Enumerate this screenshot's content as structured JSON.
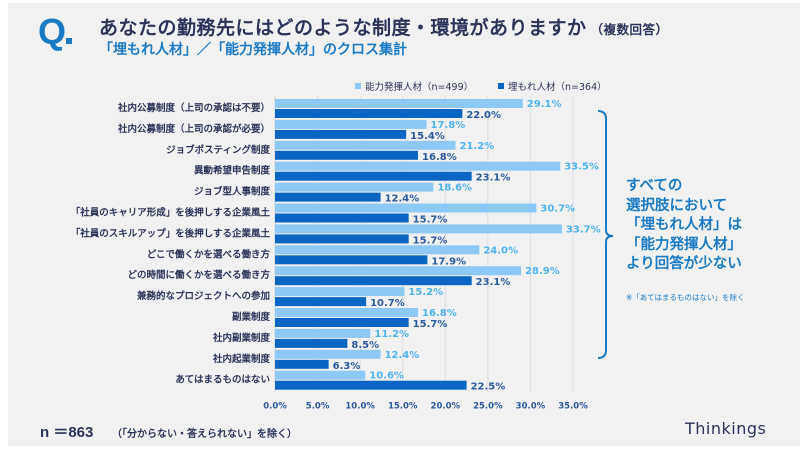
{
  "header": {
    "q_mark": "Q",
    "title": "あなたの勤務先にはどのような制度・環境がありますか",
    "title_note": "（複数回答）",
    "subtitle": "「埋もれ人材」／「能力発揮人材」のクロス集計"
  },
  "colors": {
    "accent": "#1a7ac4",
    "series_light": "#8ec9f5",
    "series_dark": "#0a66c2",
    "label_light": "#4fb3f0",
    "label_dark": "#2a5b9e",
    "text": "#2b3358",
    "panel_bg": "#f1f1f1"
  },
  "chart_data": {
    "type": "bar",
    "orientation": "horizontal",
    "title": "あなたの勤務先にはどのような制度・環境がありますか（複数回答）",
    "categories": [
      "社内公募制度（上司の承認は不要）",
      "社内公募制度（上司の承認が必要）",
      "ジョブポスティング制度",
      "異動希望申告制度",
      "ジョブ型人事制度",
      "「社員のキャリア形成」を後押しする企業風土",
      "「社員のスキルアップ」を後押しする企業風土",
      "どこで働くかを選べる働き方",
      "どの時間に働くかを選べる働き方",
      "兼務的なプロジェクトへの参加",
      "副業制度",
      "社内副業制度",
      "社内起業制度",
      "あてはまるものはない"
    ],
    "series": [
      {
        "name": "能力発揮人材（n=499）",
        "values": [
          29.1,
          17.8,
          21.2,
          33.5,
          18.6,
          30.7,
          33.7,
          24.0,
          28.9,
          15.2,
          16.8,
          11.2,
          12.4,
          10.6
        ]
      },
      {
        "name": "埋もれ人材（n=364）",
        "values": [
          22.0,
          15.4,
          16.8,
          23.1,
          12.4,
          15.7,
          15.7,
          17.9,
          23.1,
          10.7,
          15.7,
          8.5,
          6.3,
          22.5
        ]
      }
    ],
    "xlabel": "",
    "ylabel": "",
    "xlim": [
      0,
      35
    ],
    "x_ticks": [
      "0.0%",
      "5.0%",
      "10.0%",
      "15.0%",
      "20.0%",
      "25.0%",
      "30.0%",
      "35.0%"
    ],
    "unit": "%",
    "grid": true,
    "legend_position": "top"
  },
  "annotation": {
    "lines": [
      "すべての",
      "選択肢において",
      "「埋もれ人材」は",
      "「能力発揮人材」",
      "より回答が少ない"
    ],
    "note": "※「あてはまるものはない」を除く"
  },
  "footer": {
    "n_label": "n ＝863",
    "n_note": "（「分からない・答えられない」を除く）",
    "brand": "Thinkings"
  }
}
